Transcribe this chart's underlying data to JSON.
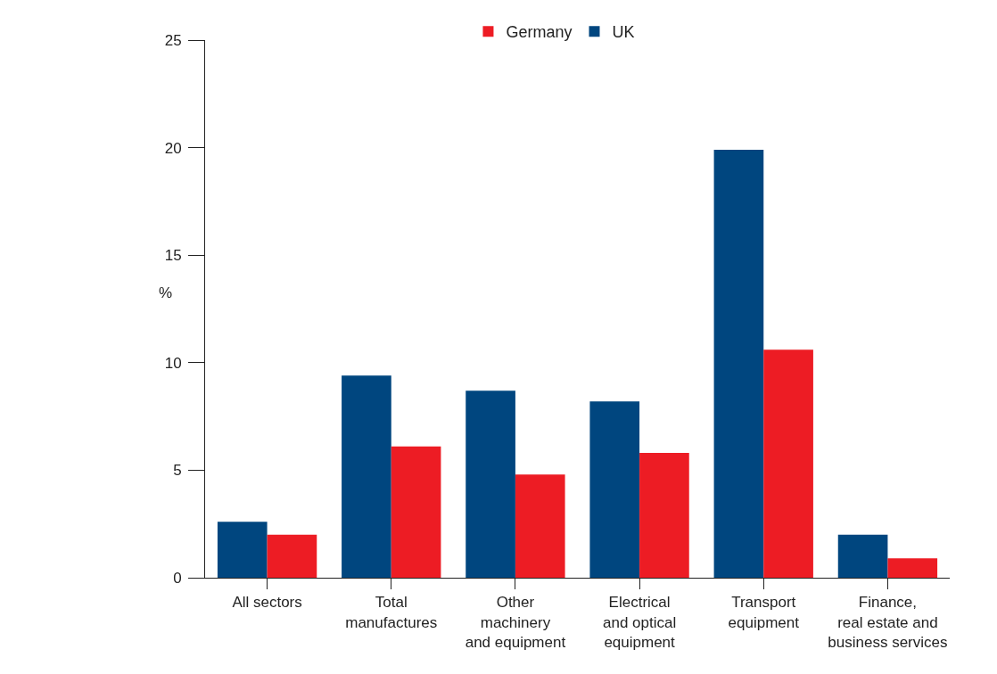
{
  "chart_data": {
    "type": "bar",
    "ylabel": "%",
    "categories": [
      "All sectors",
      "Total\nmanufactures",
      "Other\nmachinery\nand equipment",
      "Electrical\nand optical\nequipment",
      "Transport\nequipment",
      "Finance,\nreal estate and\nbusiness services"
    ],
    "series": [
      {
        "name": "UK",
        "color": "#00467f",
        "values": [
          2.6,
          9.4,
          8.7,
          8.2,
          19.9,
          2.0
        ]
      },
      {
        "name": "Germany",
        "color": "#ed1c24",
        "values": [
          2.0,
          6.1,
          4.8,
          5.8,
          10.6,
          0.9
        ]
      }
    ],
    "ylim": [
      0,
      25
    ],
    "yticks": [
      0,
      5,
      10,
      15,
      20,
      25
    ],
    "legend": "top"
  }
}
